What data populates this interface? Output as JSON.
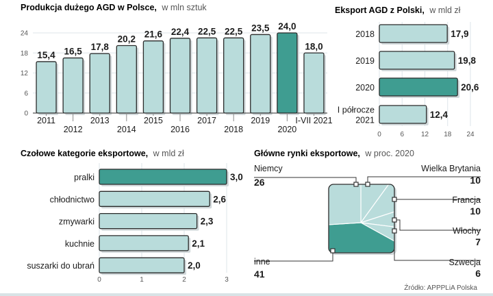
{
  "colors": {
    "bar": "#b9dcdb",
    "highlight": "#3f9d91",
    "stroke": "#2a2a2a",
    "shadow": "#d2d9db",
    "grid": "#dde6ea",
    "text": "#1a1a1a",
    "muted": "#555555"
  },
  "chart_data": [
    {
      "id": "production",
      "type": "bar",
      "title": "Produkcja dużego AGD w Polsce,",
      "subtitle": "w mln sztuk",
      "categories": [
        "2011",
        "2012",
        "2013",
        "2014",
        "2015",
        "2016",
        "2017",
        "2018",
        "2019",
        "2020",
        "I-VII 2021"
      ],
      "values": [
        15.4,
        16.5,
        17.8,
        20.2,
        21.6,
        22.4,
        22.5,
        22.5,
        23.5,
        24.0,
        18.0
      ],
      "value_labels": [
        "15,4",
        "16,5",
        "17,8",
        "20,2",
        "21,6",
        "22,4",
        "22,5",
        "22,5",
        "23,5",
        "24,0",
        "18,0"
      ],
      "highlight": [
        "2020"
      ],
      "ylim": [
        0,
        24
      ],
      "yticks": [
        "0",
        "6",
        "12",
        "18",
        "24"
      ],
      "grid": true
    },
    {
      "id": "export",
      "type": "bar",
      "orientation": "horizontal",
      "title": "Eksport AGD z Polski,",
      "subtitle": "w mld zł",
      "categories": [
        [
          "2018"
        ],
        [
          "2019"
        ],
        [
          "2020"
        ],
        [
          "I półrocze",
          "2021"
        ]
      ],
      "values": [
        17.9,
        19.8,
        20.6,
        12.4
      ],
      "value_labels": [
        "17,9",
        "19,8",
        "20,6",
        "12,4"
      ],
      "highlight": [
        2
      ],
      "xlim": [
        0,
        24
      ],
      "xticks": [
        "0",
        "6",
        "12",
        "18",
        "24"
      ],
      "grid": true
    },
    {
      "id": "categories",
      "type": "bar",
      "orientation": "horizontal",
      "title": "Czołowe kategorie eksportowe,",
      "subtitle": "w mld zł",
      "categories": [
        "pralki",
        "chłodnictwo",
        "zmywarki",
        "kuchnie",
        "suszarki do ubrań"
      ],
      "values": [
        3.0,
        2.6,
        2.3,
        2.1,
        2.0
      ],
      "value_labels": [
        "3,0",
        "2,6",
        "2,3",
        "2,1",
        "2,0"
      ],
      "highlight": [
        0
      ],
      "xlim": [
        0,
        3
      ],
      "xticks": [
        "0",
        "1",
        "2",
        "3"
      ],
      "grid": true
    },
    {
      "id": "markets",
      "type": "pie",
      "title": "Główne rynki eksportowe,",
      "subtitle": "w proc. 2020",
      "slices": [
        {
          "name": "Niemcy",
          "value": 26,
          "label": "26"
        },
        {
          "name": "Wielka Brytania",
          "value": 10,
          "label": "10"
        },
        {
          "name": "Francja",
          "value": 10,
          "label": "10"
        },
        {
          "name": "Włochy",
          "value": 7,
          "label": "7"
        },
        {
          "name": "Szwecja",
          "value": 6,
          "label": "6"
        },
        {
          "name": "inne",
          "value": 41,
          "label": "41"
        }
      ],
      "highlight": [
        "inne"
      ]
    }
  ],
  "source": "Źródło: APPPLiA Polska"
}
